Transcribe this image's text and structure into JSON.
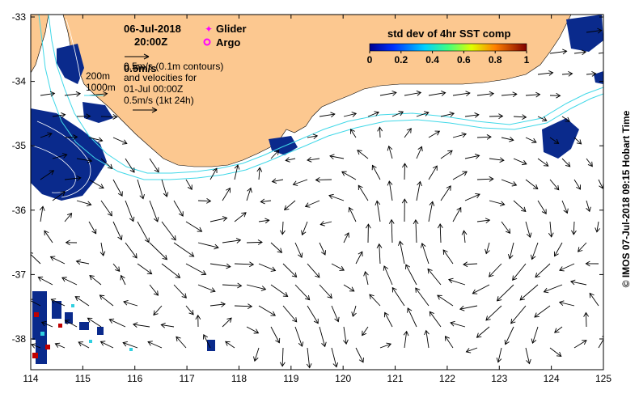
{
  "date": "06-Jul-2018",
  "time": "20:00Z",
  "legend": {
    "glider": "Glider",
    "argo": "Argo",
    "glider_color": "#ff00ff",
    "argo_color": "#ff00ff"
  },
  "velocity_scale": "0.5m/s",
  "contour_note_1": "0.5m/s (0.1m contours)",
  "contour_note_2": "and velocities for",
  "contour_note_3": "01-Jul 00:00Z",
  "contour_note_4": "0.5m/s (1kt 24h)",
  "isobath_200": "200m",
  "isobath_1000": "1000m",
  "colorbar": {
    "title": "std dev of 4hr SST comp",
    "ticks": [
      "0",
      "0.2",
      "0.4",
      "0.6",
      "0.8",
      "1"
    ]
  },
  "x_ticks": [
    "114",
    "115",
    "116",
    "117",
    "118",
    "119",
    "120",
    "121",
    "122",
    "123",
    "124",
    "125"
  ],
  "y_ticks": [
    "-33",
    "-34",
    "-35",
    "-36",
    "-37",
    "-38"
  ],
  "credit": "© IMOS 07-Jul-2018 09:15 Hobart Time",
  "colors": {
    "land": "#fcc890",
    "sst_low": "#0a2a8c",
    "isobath": "#40d8e8",
    "arrow": "#000000"
  }
}
